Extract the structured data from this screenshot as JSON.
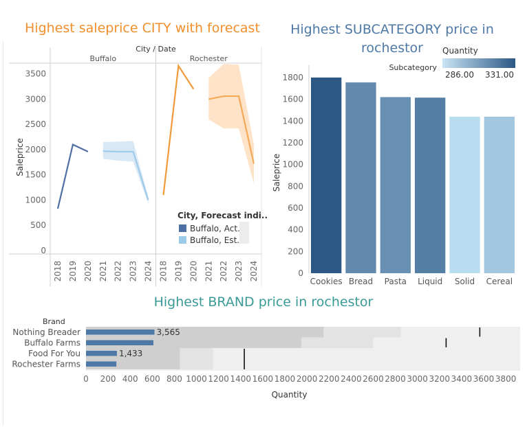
{
  "colors": {
    "title_orange": "#f28e2b",
    "title_blue": "#4e79a7",
    "title_teal": "#3a9a95",
    "buffalo_actual": "#4e6fa3",
    "buffalo_estimate": "#9ecae9",
    "rochester_actual": "#f09a3a",
    "rochester_band": "#fdd9b5",
    "bullet_bar": "#4e79a7"
  },
  "chart_data": [
    {
      "type": "line",
      "title": "Highest saleprice CITY with forecast",
      "column_header": "City / Date",
      "panels": [
        "Buffalo",
        "Rochester"
      ],
      "x_ticks": [
        "2018",
        "2019",
        "2020",
        "2021",
        "2022",
        "2023",
        "2024"
      ],
      "ylabel": "Saleprice",
      "ylim": [
        0,
        3700
      ],
      "y_ticks": [
        0,
        500,
        1000,
        1500,
        2000,
        2500,
        3000,
        3500
      ],
      "legend": {
        "title": "City, Forecast indi..",
        "items": [
          "Buffalo, Act..",
          "Buffalo, Est.."
        ],
        "placement": "bottom-right"
      },
      "series": [
        {
          "panel": "Buffalo",
          "kind": "actual",
          "x": [
            2018,
            2019,
            2020
          ],
          "y": [
            830,
            2100,
            1960
          ]
        },
        {
          "panel": "Buffalo",
          "kind": "estimate",
          "x": [
            2021,
            2022,
            2023,
            2024
          ],
          "y": [
            1970,
            1960,
            1960,
            1000
          ],
          "band_upper": [
            2150,
            2160,
            2170,
            1060
          ],
          "band_lower": [
            1820,
            1780,
            1760,
            930
          ]
        },
        {
          "panel": "Rochester",
          "kind": "actual",
          "x": [
            2018,
            2019,
            2020
          ],
          "y": [
            1100,
            3660,
            3200
          ]
        },
        {
          "panel": "Rochester",
          "kind": "estimate",
          "x": [
            2021,
            2022,
            2023,
            2024
          ],
          "y": [
            3000,
            3060,
            3060,
            1720
          ],
          "band_upper": [
            3420,
            3700,
            3680,
            2100
          ],
          "band_lower": [
            2600,
            2420,
            2420,
            1330
          ]
        }
      ]
    },
    {
      "type": "bar",
      "title": "Highest SUBCATEGORY price in rochestor",
      "categories": [
        "Cookies",
        "Bread",
        "Pasta",
        "Liquid",
        "Solid",
        "Cereal"
      ],
      "values": [
        1800,
        1755,
        1620,
        1615,
        1440,
        1440
      ],
      "quantity": [
        331,
        314,
        312,
        318,
        286,
        293
      ],
      "ylabel": "Saleprice",
      "ylim": [
        0,
        1850
      ],
      "y_ticks": [
        0,
        200,
        400,
        600,
        800,
        1000,
        1200,
        1400,
        1600,
        1800
      ],
      "color_legend": {
        "title": "Quantity",
        "min_label": "286.00",
        "max_label": "331.00"
      },
      "column_header": "Subcategory"
    },
    {
      "type": "bar",
      "title": "Highest BRAND price in rochestor",
      "row_header": "Brand",
      "categories": [
        "Nothing Breader",
        "Buffalo Farms",
        "Food For You",
        "Rochester Farms"
      ],
      "values": [
        620,
        610,
        280,
        275
      ],
      "value_labels": [
        "3,565",
        "",
        "1,433",
        ""
      ],
      "reference_lines": [
        3565,
        3260,
        1433,
        null
      ],
      "band_dark": [
        2150,
        1950,
        850,
        850
      ],
      "band_mid": [
        2850,
        2600,
        1150,
        1150
      ],
      "xlabel": "Quantity",
      "xlim": [
        0,
        3930
      ],
      "x_ticks": [
        0,
        200,
        400,
        600,
        800,
        1000,
        1200,
        1400,
        1600,
        1800,
        2000,
        2200,
        2400,
        2600,
        2800,
        3000,
        3200,
        3400,
        3600,
        3800
      ]
    }
  ]
}
